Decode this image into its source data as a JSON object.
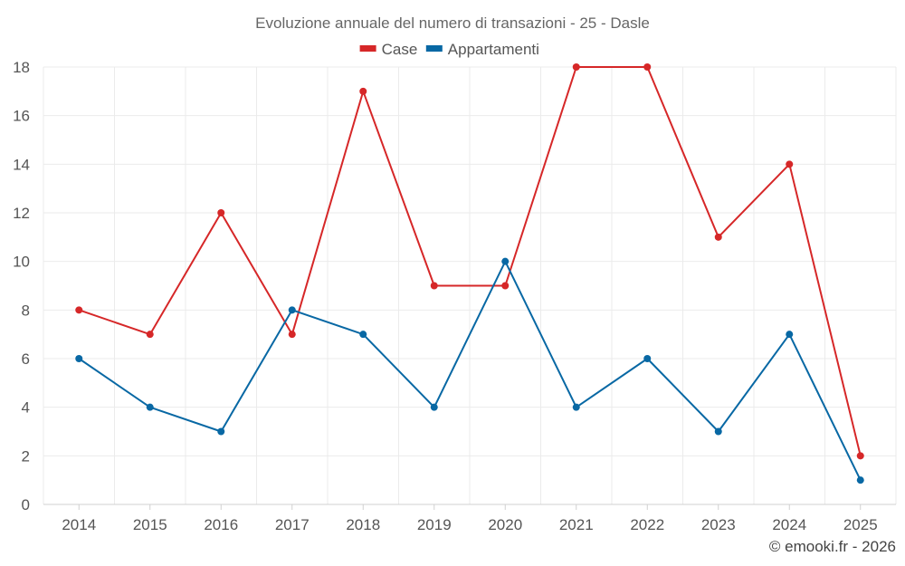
{
  "chart_data": {
    "type": "line",
    "title": "Evoluzione annuale del numero di transazioni - 25 - Dasle",
    "categories": [
      "2014",
      "2015",
      "2016",
      "2017",
      "2018",
      "2019",
      "2020",
      "2021",
      "2022",
      "2023",
      "2024",
      "2025"
    ],
    "series": [
      {
        "name": "Case",
        "color": "#d62728",
        "values": [
          8,
          7,
          12,
          7,
          17,
          9,
          9,
          18,
          18,
          11,
          14,
          2
        ]
      },
      {
        "name": "Appartamenti",
        "color": "#0868a4",
        "values": [
          6,
          4,
          3,
          8,
          7,
          4,
          10,
          4,
          6,
          3,
          7,
          1
        ]
      }
    ],
    "ylim": [
      0,
      18
    ],
    "yticks": [
      0,
      2,
      4,
      6,
      8,
      10,
      12,
      14,
      16,
      18
    ],
    "xlabel": "",
    "ylabel": "",
    "grid": true,
    "legend": "top-center"
  },
  "credit": "© emooki.fr - 2026"
}
